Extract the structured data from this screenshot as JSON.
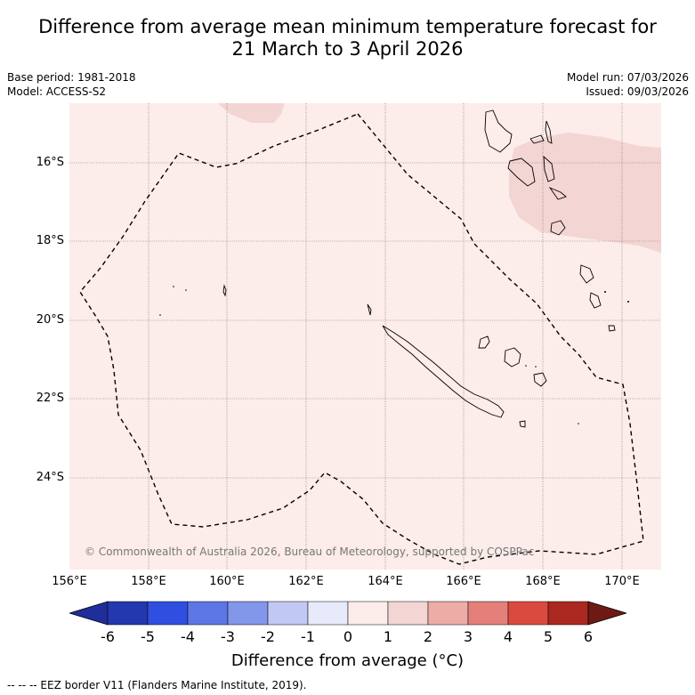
{
  "title": {
    "line1": "Difference from average mean minimum temperature forecast for",
    "line2": "21 March to 3 April 2026"
  },
  "meta": {
    "base_period": "Base period: 1981-2018",
    "model": "Model: ACCESS-S2",
    "model_run": "Model run: 07/03/2026",
    "issued": "Issued: 09/03/2026"
  },
  "map": {
    "lat_labels": [
      "16°S",
      "18°S",
      "20°S",
      "22°S",
      "24°S"
    ],
    "lon_labels": [
      "156°E",
      "158°E",
      "160°E",
      "162°E",
      "164°E",
      "166°E",
      "168°E",
      "170°E"
    ],
    "copyright": "© Commonwealth of Australia 2026, Bureau of Meteorology, supported by COSPPac",
    "background_color": "#fcecea",
    "anomaly_color": "#f3d5d3"
  },
  "colorbar": {
    "ticks": [
      "-6",
      "-5",
      "-4",
      "-3",
      "-2",
      "-1",
      "0",
      "1",
      "2",
      "3",
      "4",
      "5",
      "6"
    ],
    "colors": [
      "#1f2e9a",
      "#2338ae",
      "#2f4fe0",
      "#5d76e6",
      "#8296ea",
      "#c1c8f4",
      "#e6eafb",
      "#fcecea",
      "#f3d5d3",
      "#eeaca7",
      "#e48079",
      "#db4a3e",
      "#ab2820",
      "#6e1a14"
    ],
    "label": "Difference from average (°C)"
  },
  "footnote": "-- -- -- EEZ border V11 (Flanders Marine Institute, 2019)."
}
